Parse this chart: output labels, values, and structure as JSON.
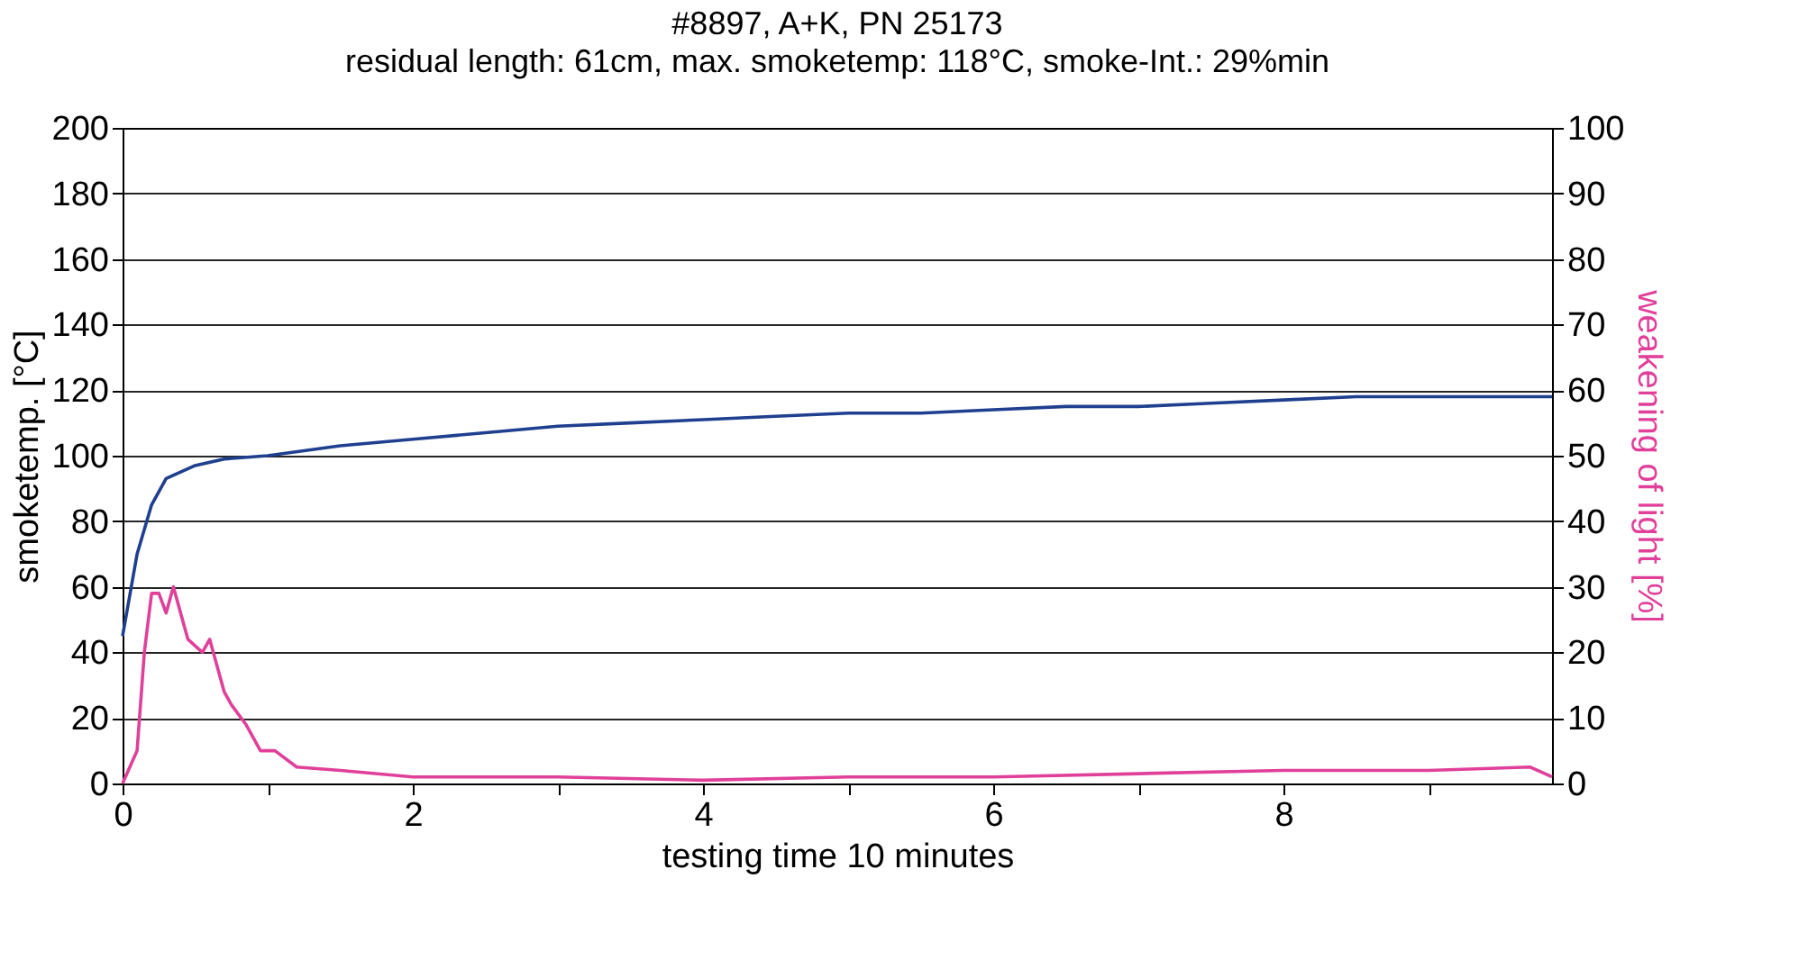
{
  "chart_data": {
    "type": "line",
    "title": "#8897, A+K, PN 25173",
    "subtitle": "residual length: 61cm, max. smoketemp: 118°C, smoke-Int.: 29%min",
    "xlabel": "testing time 10 minutes",
    "ylabel": "smoketemp. [°C]",
    "y2label": "weakening of light [%]",
    "xlim": [
      0,
      9.85
    ],
    "xticks": [
      0,
      {
        "value": 1,
        "label": null
      },
      2,
      {
        "value": 3,
        "label": null
      },
      4,
      {
        "value": 5,
        "label": null
      },
      6,
      {
        "value": 7,
        "label": null
      },
      8,
      {
        "value": 9,
        "label": null
      }
    ],
    "ylim": [
      0,
      200
    ],
    "yticks": [
      0,
      20,
      40,
      60,
      80,
      100,
      120,
      140,
      160,
      180,
      200
    ],
    "y2lim": [
      0,
      100
    ],
    "y2ticks": [
      0,
      10,
      20,
      30,
      40,
      50,
      60,
      70,
      80,
      90,
      100
    ],
    "grid": "y",
    "marker": "none",
    "line_style": "solid",
    "series": [
      {
        "color": "#1f3f8f",
        "x": [
          0,
          0.1,
          0.2,
          0.3,
          0.5,
          0.7,
          1,
          1.5,
          2,
          2.5,
          3,
          3.5,
          4,
          4.5,
          5,
          5.5,
          6,
          6.5,
          7,
          7.5,
          8,
          8.5,
          9,
          9.5,
          9.85
        ],
        "values": [
          45,
          70,
          85,
          93,
          97,
          99,
          100,
          103,
          105,
          107,
          109,
          110,
          111,
          112,
          113,
          113,
          114,
          115,
          115,
          116,
          117,
          118,
          118,
          118,
          118
        ]
      },
      {
        "color": "#e0409a",
        "axis": "y2",
        "x": [
          0,
          0.1,
          0.15,
          0.2,
          0.25,
          0.3,
          0.35,
          0.4,
          0.45,
          0.55,
          0.6,
          0.7,
          0.75,
          0.85,
          0.95,
          1.05,
          1.2,
          1.5,
          2,
          3,
          4,
          5,
          6,
          7,
          8,
          9,
          9.7,
          9.85
        ],
        "values": [
          0,
          5,
          20,
          29,
          29,
          26,
          30,
          26,
          22,
          20,
          22,
          14,
          12,
          9,
          5,
          5,
          2.5,
          2,
          1,
          1,
          0.5,
          1,
          1,
          1.5,
          2,
          2,
          2.5,
          1
        ]
      }
    ]
  }
}
